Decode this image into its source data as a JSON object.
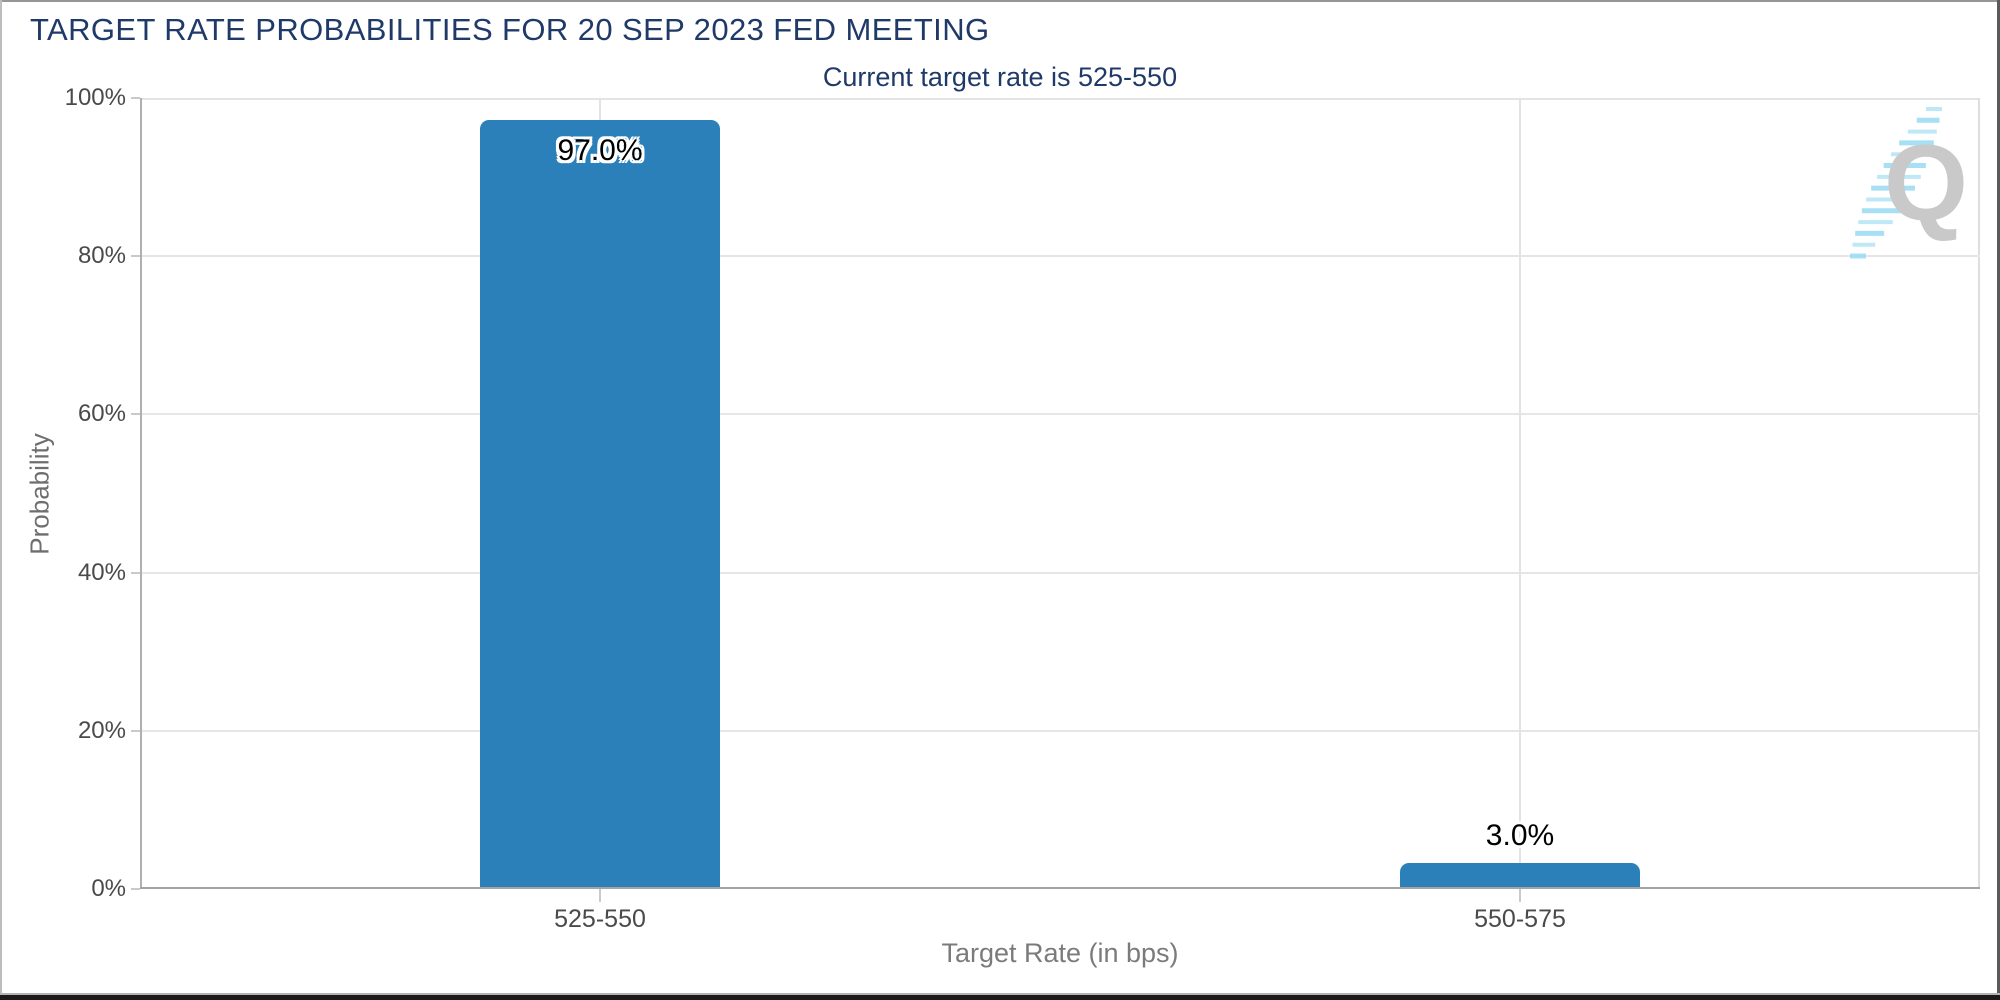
{
  "chart_data": {
    "type": "bar",
    "title": "TARGET RATE PROBABILITIES FOR 20 SEP 2023 FED MEETING",
    "subtitle": "Current target rate is 525-550",
    "categories": [
      "525-550",
      "550-575"
    ],
    "values": [
      97.0,
      3.0
    ],
    "value_labels": [
      "97.0%",
      "3.0%"
    ],
    "xlabel": "Target Rate (in bps)",
    "ylabel": "Probability",
    "ylim": [
      0,
      100
    ],
    "yticks": [
      "0%",
      "20%",
      "40%",
      "60%",
      "80%",
      "100%"
    ],
    "bar_color": "#2c80ba",
    "grid": true,
    "legend": false
  },
  "colors": {
    "title_navy": "#1f3a68",
    "bar_blue": "#2c80ba",
    "tick_label": "#4a4a4a",
    "axis_title": "#7b7b7b"
  },
  "logo": {
    "letter": "Q",
    "letter_color": "#c9c9c9",
    "accent_color": "#9edcf4"
  }
}
